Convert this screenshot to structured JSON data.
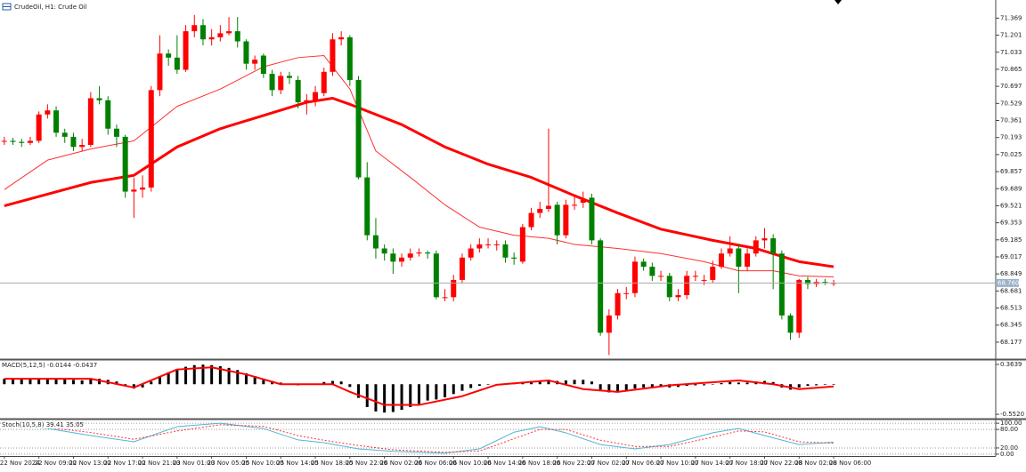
{
  "header": "CrudeOil, H1: Crude Oil",
  "chart_data": [
    {
      "type": "candlestick",
      "categories": [
        "22 Nov 2024",
        null,
        null,
        null,
        "22 Nov 09:00",
        null,
        null,
        null,
        "22 Nov 13:00",
        null,
        null,
        null,
        "22 Nov 17:00",
        null,
        null,
        null,
        "22 Nov 21:00",
        null,
        null,
        null,
        "23 Nov 01:00",
        null,
        null,
        null,
        "23 Nov 05:00",
        null,
        null,
        null,
        "25 Nov 10:00",
        null,
        null,
        null,
        "25 Nov 14:00",
        null,
        null,
        null,
        "25 Nov 18:00",
        null,
        null,
        null,
        "25 Nov 22:00",
        null,
        null,
        null,
        "26 Nov 02:00",
        null,
        null,
        null,
        "26 Nov 06:00",
        null,
        null,
        null,
        "26 Nov 10:00",
        null,
        null,
        null,
        "26 Nov 14:00",
        null,
        null,
        null,
        "26 Nov 18:00",
        null,
        null,
        null,
        "26 Nov 22:00",
        null,
        null,
        null,
        "27 Nov 02:00",
        null,
        null,
        null,
        "27 Nov 06:00",
        null,
        null,
        null,
        "27 Nov 10:00",
        null,
        null,
        null,
        "27 Nov 14:00",
        null,
        null,
        null,
        "27 Nov 18:00",
        null,
        null,
        null,
        "27 Nov 22:00",
        null,
        null,
        null,
        "28 Nov 02:00",
        null,
        null,
        null,
        "28 Nov 06:00"
      ],
      "candles": [
        [
          70.16,
          70.2,
          70.12,
          70.16
        ],
        [
          70.16,
          70.19,
          70.12,
          70.15
        ],
        [
          70.15,
          70.18,
          70.1,
          70.14
        ],
        [
          70.14,
          70.2,
          70.12,
          70.16
        ],
        [
          70.16,
          70.45,
          70.14,
          70.42
        ],
        [
          70.42,
          70.52,
          70.38,
          70.46
        ],
        [
          70.46,
          70.5,
          70.2,
          70.24
        ],
        [
          70.24,
          70.28,
          70.14,
          70.2
        ],
        [
          70.2,
          70.24,
          70.06,
          70.1
        ],
        [
          70.1,
          70.18,
          70.06,
          70.12
        ],
        [
          70.12,
          70.64,
          70.1,
          70.58
        ],
        [
          70.58,
          70.7,
          70.52,
          70.56
        ],
        [
          70.56,
          70.6,
          70.22,
          70.28
        ],
        [
          70.28,
          70.32,
          70.1,
          70.2
        ],
        [
          70.2,
          70.22,
          69.6,
          69.66
        ],
        [
          69.66,
          69.8,
          69.4,
          69.68
        ],
        [
          69.68,
          69.82,
          69.6,
          69.7
        ],
        [
          69.7,
          70.7,
          69.66,
          70.66
        ],
        [
          70.66,
          71.2,
          70.6,
          71.02
        ],
        [
          71.02,
          71.06,
          70.9,
          70.98
        ],
        [
          70.98,
          71.2,
          70.82,
          70.86
        ],
        [
          70.86,
          71.3,
          70.84,
          71.24
        ],
        [
          71.24,
          71.4,
          71.18,
          71.3
        ],
        [
          71.3,
          71.36,
          71.1,
          71.16
        ],
        [
          71.16,
          71.26,
          71.1,
          71.18
        ],
        [
          71.18,
          71.3,
          71.14,
          71.22
        ],
        [
          71.22,
          71.38,
          71.2,
          71.24
        ],
        [
          71.24,
          71.38,
          71.08,
          71.14
        ],
        [
          71.14,
          71.16,
          70.86,
          70.92
        ],
        [
          70.92,
          71.0,
          70.86,
          70.96
        ],
        [
          71.0,
          71.02,
          70.78,
          70.82
        ],
        [
          70.82,
          70.86,
          70.6,
          70.66
        ],
        [
          70.66,
          70.84,
          70.62,
          70.8
        ],
        [
          70.8,
          70.84,
          70.72,
          70.78
        ],
        [
          70.76,
          70.8,
          70.48,
          70.54
        ],
        [
          70.54,
          70.62,
          70.42,
          70.56
        ],
        [
          70.56,
          70.7,
          70.5,
          70.64
        ],
        [
          70.63,
          70.88,
          70.6,
          70.84
        ],
        [
          70.84,
          71.22,
          70.8,
          71.16
        ],
        [
          71.16,
          71.24,
          71.1,
          71.18
        ],
        [
          71.18,
          71.2,
          70.7,
          70.76
        ],
        [
          70.76,
          70.8,
          69.78,
          69.8
        ],
        [
          69.8,
          69.95,
          69.18,
          69.23
        ],
        [
          69.23,
          69.4,
          69.0,
          69.1
        ],
        [
          69.1,
          69.14,
          68.98,
          69.05
        ],
        [
          69.05,
          69.1,
          68.85,
          68.97
        ],
        [
          68.97,
          69.05,
          68.92,
          69.01
        ],
        [
          69.01,
          69.1,
          68.98,
          69.05
        ],
        [
          69.05,
          69.1,
          69.02,
          69.06
        ],
        [
          69.06,
          69.08,
          69.0,
          69.05
        ],
        [
          69.05,
          69.08,
          68.6,
          68.62
        ],
        [
          68.62,
          68.7,
          68.58,
          68.62
        ],
        [
          68.62,
          68.84,
          68.58,
          68.79
        ],
        [
          68.79,
          69.05,
          68.76,
          69.01
        ],
        [
          69.01,
          69.14,
          68.98,
          69.1
        ],
        [
          69.1,
          69.2,
          69.06,
          69.14
        ],
        [
          69.14,
          69.2,
          69.1,
          69.14
        ],
        [
          69.14,
          69.18,
          69.08,
          69.14
        ],
        [
          69.14,
          69.18,
          68.96,
          69.01
        ],
        [
          69.01,
          69.06,
          68.94,
          69.0
        ],
        [
          68.97,
          69.34,
          68.95,
          69.31
        ],
        [
          69.31,
          69.5,
          69.28,
          69.45
        ],
        [
          69.45,
          69.56,
          69.4,
          69.49
        ],
        [
          69.49,
          70.28,
          69.46,
          69.52
        ],
        [
          69.53,
          69.56,
          69.14,
          69.23
        ],
        [
          69.23,
          69.58,
          69.2,
          69.53
        ],
        [
          69.53,
          69.62,
          69.48,
          69.53
        ],
        [
          69.55,
          69.66,
          69.5,
          69.58
        ],
        [
          69.6,
          69.64,
          69.14,
          69.18
        ],
        [
          69.18,
          69.2,
          68.24,
          68.27
        ],
        [
          68.27,
          68.5,
          68.05,
          68.44
        ],
        [
          68.44,
          68.7,
          68.4,
          68.66
        ],
        [
          68.66,
          68.72,
          68.6,
          68.66
        ],
        [
          68.66,
          69.02,
          68.62,
          68.97
        ],
        [
          68.97,
          69.0,
          68.88,
          68.92
        ],
        [
          68.92,
          68.96,
          68.78,
          68.83
        ],
        [
          68.83,
          68.88,
          68.78,
          68.83
        ],
        [
          68.83,
          68.86,
          68.58,
          68.62
        ],
        [
          68.62,
          68.7,
          68.58,
          68.64
        ],
        [
          68.64,
          68.88,
          68.6,
          68.83
        ],
        [
          68.83,
          68.88,
          68.78,
          68.83
        ],
        [
          68.79,
          68.84,
          68.74,
          68.79
        ],
        [
          68.79,
          68.98,
          68.76,
          68.92
        ],
        [
          68.92,
          69.1,
          68.9,
          69.05
        ],
        [
          69.05,
          69.22,
          69.02,
          69.1
        ],
        [
          69.1,
          69.14,
          68.66,
          68.92
        ],
        [
          68.92,
          69.1,
          68.88,
          69.05
        ],
        [
          69.05,
          69.22,
          69.02,
          69.18
        ],
        [
          69.18,
          69.3,
          69.1,
          69.2
        ],
        [
          69.2,
          69.24,
          68.7,
          69.05
        ],
        [
          69.05,
          69.08,
          68.4,
          68.44
        ],
        [
          68.44,
          68.46,
          68.2,
          68.27
        ],
        [
          68.27,
          68.8,
          68.22,
          68.79
        ],
        [
          68.79,
          68.82,
          68.7,
          68.75
        ],
        [
          68.75,
          68.8,
          68.72,
          68.77
        ],
        [
          68.77,
          68.8,
          68.74,
          68.76
        ],
        [
          68.76,
          68.79,
          68.73,
          68.76
        ]
      ],
      "up_color": "#ff0000",
      "down_color": "#008000",
      "lines": [
        {
          "color": "#ff0000",
          "width": 3,
          "x": [
            0,
            10,
            15,
            20,
            25,
            30,
            35,
            38,
            40,
            46,
            51,
            56,
            61,
            66,
            71,
            76,
            82,
            87,
            92,
            96
          ],
          "values": [
            69.52,
            69.75,
            69.82,
            70.1,
            70.28,
            70.41,
            70.54,
            70.58,
            70.52,
            70.32,
            70.1,
            69.93,
            69.8,
            69.62,
            69.45,
            69.29,
            69.18,
            69.1,
            68.97,
            68.92
          ]
        },
        {
          "color": "#ff3030",
          "width": 1,
          "x": [
            0,
            5,
            10,
            15,
            20,
            25,
            30,
            34,
            37,
            40,
            43,
            47,
            51,
            55,
            59,
            63,
            66,
            71,
            76,
            81,
            85,
            89,
            92,
            96
          ],
          "values": [
            69.68,
            69.97,
            70.08,
            70.16,
            70.5,
            70.67,
            70.89,
            70.98,
            71.0,
            70.67,
            70.06,
            69.8,
            69.53,
            69.31,
            69.23,
            69.2,
            69.14,
            69.1,
            69.05,
            68.97,
            68.88,
            68.88,
            68.83,
            68.82
          ]
        }
      ],
      "price_line": {
        "value": 68.76,
        "label": "68.760"
      },
      "ylim": [
        68.01,
        71.53
      ],
      "yticks": [
        68.177,
        68.345,
        68.513,
        68.681,
        68.849,
        69.017,
        69.185,
        69.353,
        69.521,
        69.689,
        69.857,
        70.025,
        70.193,
        70.361,
        70.529,
        70.697,
        70.865,
        71.033,
        71.201,
        71.369
      ]
    },
    {
      "type": "bar",
      "title": "MACD(5,12,5) -0.0144 -0.0437",
      "color": "#000000",
      "values": [
        0.1,
        0.1,
        0.1,
        0.09,
        0.1,
        0.11,
        0.1,
        0.09,
        0.08,
        0.07,
        0.09,
        0.1,
        0.08,
        0.05,
        -0.03,
        -0.08,
        -0.06,
        0.05,
        0.15,
        0.22,
        0.28,
        0.32,
        0.35,
        0.36,
        0.35,
        0.33,
        0.3,
        0.26,
        0.2,
        0.15,
        0.1,
        0.06,
        0.03,
        0.0,
        -0.02,
        -0.01,
        0.01,
        0.04,
        0.06,
        0.05,
        -0.05,
        -0.25,
        -0.42,
        -0.5,
        -0.52,
        -0.51,
        -0.47,
        -0.42,
        -0.36,
        -0.3,
        -0.28,
        -0.24,
        -0.18,
        -0.12,
        -0.07,
        -0.03,
        -0.01,
        0.0,
        -0.01,
        0.01,
        0.04,
        0.06,
        0.07,
        0.08,
        0.06,
        0.07,
        0.08,
        0.08,
        0.05,
        -0.1,
        -0.15,
        -0.14,
        -0.12,
        -0.08,
        -0.06,
        -0.05,
        -0.05,
        -0.06,
        -0.05,
        -0.03,
        -0.02,
        -0.02,
        0.0,
        0.02,
        0.04,
        0.03,
        0.03,
        0.05,
        0.06,
        0.04,
        -0.06,
        -0.1,
        -0.06,
        -0.03,
        -0.02,
        -0.01,
        -0.01
      ],
      "lines": [
        {
          "color": "#ff0000",
          "width": 2,
          "x": [
            0,
            10,
            15,
            20,
            24,
            28,
            32,
            38,
            40,
            44,
            48,
            53,
            57,
            63,
            67,
            71,
            77,
            85,
            89,
            92,
            96
          ],
          "values": [
            0.1,
            0.1,
            -0.06,
            0.27,
            0.31,
            0.18,
            0.0,
            0.0,
            -0.14,
            -0.38,
            -0.38,
            -0.22,
            -0.01,
            0.07,
            -0.09,
            -0.14,
            -0.02,
            0.07,
            0.0,
            -0.09,
            -0.04
          ]
        }
      ],
      "ylim": [
        -0.632,
        0.428
      ],
      "yticks": [
        {
          "value": -0.552,
          "label": "-0.5520"
        },
        {
          "value": 0.3639,
          "label": "0.3639"
        }
      ]
    },
    {
      "type": "line",
      "title": "Stoch(10,5,8) 39.41 35.05",
      "grid": true,
      "lines": [
        {
          "color": "#4fb6d6",
          "width": 1,
          "x": [
            0,
            5,
            10,
            15,
            20,
            25,
            30,
            34,
            37,
            41,
            45,
            51,
            55,
            59,
            62,
            65,
            69,
            73,
            77,
            82,
            85,
            88,
            92,
            96
          ],
          "values": [
            89,
            83,
            60,
            40,
            89,
            100,
            83,
            46,
            37,
            17,
            9,
            3,
            17,
            71,
            89,
            69,
            31,
            17,
            31,
            69,
            83,
            60,
            31,
            39
          ]
        },
        {
          "color": "#ff3030",
          "width": 1,
          "dash": true,
          "x": [
            0,
            5,
            10,
            15,
            20,
            25,
            30,
            34,
            37,
            41,
            45,
            51,
            55,
            59,
            62,
            65,
            69,
            73,
            77,
            82,
            85,
            88,
            92,
            96
          ],
          "values": [
            85,
            86,
            70,
            48,
            75,
            95,
            90,
            60,
            45,
            28,
            14,
            6,
            10,
            50,
            80,
            80,
            45,
            25,
            25,
            55,
            75,
            72,
            40,
            35
          ]
        }
      ],
      "ylim": [
        -6,
        109
      ],
      "yticks": [
        {
          "value": 0,
          "label": "0.00"
        },
        {
          "value": 20,
          "label": "20.00"
        },
        {
          "value": 80,
          "label": "80.00"
        },
        {
          "value": 100,
          "label": "100.00"
        }
      ]
    }
  ]
}
